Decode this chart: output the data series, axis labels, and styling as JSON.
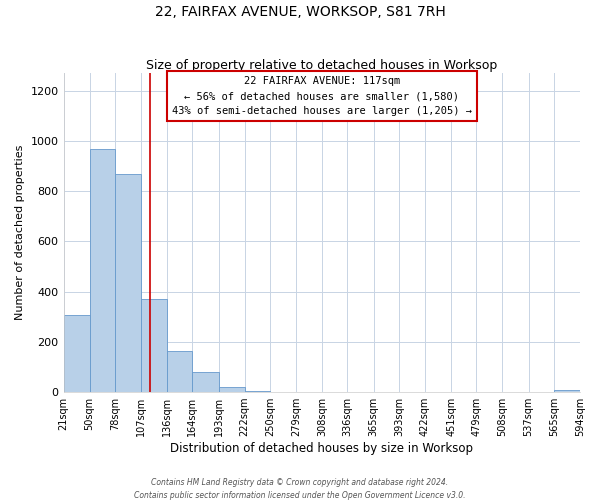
{
  "title": "22, FAIRFAX AVENUE, WORKSOP, S81 7RH",
  "subtitle": "Size of property relative to detached houses in Worksop",
  "xlabel": "Distribution of detached houses by size in Worksop",
  "ylabel": "Number of detached properties",
  "bin_edges": [
    21,
    50,
    78,
    107,
    136,
    164,
    193,
    222,
    250,
    279,
    308,
    336,
    365,
    393,
    422,
    451,
    479,
    508,
    537,
    565,
    594
  ],
  "bar_heights": [
    307,
    970,
    870,
    370,
    165,
    80,
    22,
    3,
    0,
    0,
    0,
    0,
    0,
    0,
    0,
    0,
    0,
    0,
    0,
    7
  ],
  "bar_color": "#b8d0e8",
  "bar_edge_color": "#6699cc",
  "property_size": 117,
  "vline_color": "#cc0000",
  "annotation_title": "22 FAIRFAX AVENUE: 117sqm",
  "annotation_line2": "← 56% of detached houses are smaller (1,580)",
  "annotation_line3": "43% of semi-detached houses are larger (1,205) →",
  "annotation_box_color": "#cc0000",
  "ylim": [
    0,
    1270
  ],
  "tick_labels": [
    "21sqm",
    "50sqm",
    "78sqm",
    "107sqm",
    "136sqm",
    "164sqm",
    "193sqm",
    "222sqm",
    "250sqm",
    "279sqm",
    "308sqm",
    "336sqm",
    "365sqm",
    "393sqm",
    "422sqm",
    "451sqm",
    "479sqm",
    "508sqm",
    "537sqm",
    "565sqm",
    "594sqm"
  ],
  "ytick_vals": [
    0,
    200,
    400,
    600,
    800,
    1000,
    1200
  ],
  "footer1": "Contains HM Land Registry data © Crown copyright and database right 2024.",
  "footer2": "Contains public sector information licensed under the Open Government Licence v3.0.",
  "background_color": "#ffffff",
  "grid_color": "#c8d4e4"
}
